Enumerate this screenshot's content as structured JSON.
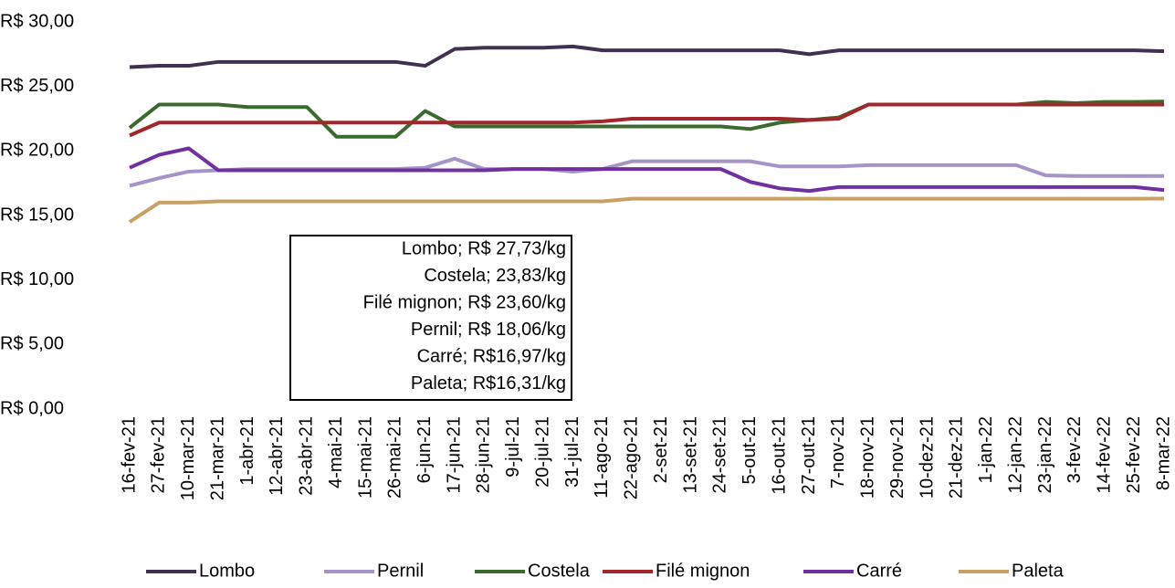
{
  "chart_data": {
    "type": "line",
    "categories": [
      "16-fev-21",
      "27-fev-21",
      "10-mar-21",
      "21-mar-21",
      "1-abr-21",
      "12-abr-21",
      "23-abr-21",
      "4-mai-21",
      "15-mai-21",
      "26-mai-21",
      "6-jun-21",
      "17-jun-21",
      "28-jun-21",
      "9-jul-21",
      "20-jul-21",
      "31-jul-21",
      "11-ago-21",
      "22-ago-21",
      "2-set-21",
      "13-set-21",
      "24-set-21",
      "5-out-21",
      "16-out-21",
      "27-out-21",
      "7-nov-21",
      "18-nov-21",
      "29-nov-21",
      "10-dez-21",
      "21-dez-21",
      "1-jan-22",
      "12-jan-22",
      "23-jan-22",
      "3-fev-22",
      "14-fev-22",
      "25-fev-22",
      "8-mar-22"
    ],
    "series": [
      {
        "name": "Lombo",
        "color": "#3f3151",
        "values": [
          26.5,
          26.6,
          26.6,
          26.9,
          26.9,
          26.9,
          26.9,
          26.9,
          26.9,
          26.9,
          26.6,
          27.9,
          28.0,
          28.0,
          28.0,
          28.1,
          27.8,
          27.8,
          27.8,
          27.8,
          27.8,
          27.8,
          27.8,
          27.5,
          27.8,
          27.8,
          27.8,
          27.8,
          27.8,
          27.8,
          27.8,
          27.8,
          27.8,
          27.8,
          27.8,
          27.73
        ]
      },
      {
        "name": "Pernil",
        "color": "#a694c8",
        "values": [
          17.3,
          17.9,
          18.4,
          18.5,
          18.6,
          18.6,
          18.6,
          18.6,
          18.6,
          18.6,
          18.7,
          19.4,
          18.6,
          18.6,
          18.6,
          18.4,
          18.6,
          19.2,
          19.2,
          19.2,
          19.2,
          19.2,
          18.8,
          18.8,
          18.8,
          18.9,
          18.9,
          18.9,
          18.9,
          18.9,
          18.9,
          18.1,
          18.06,
          18.06,
          18.06,
          18.06
        ]
      },
      {
        "name": "Costela",
        "color": "#3a6b2c",
        "values": [
          21.8,
          23.6,
          23.6,
          23.6,
          23.4,
          23.4,
          23.4,
          21.1,
          21.1,
          21.1,
          23.1,
          21.9,
          21.9,
          21.9,
          21.9,
          21.9,
          21.9,
          21.9,
          21.9,
          21.9,
          21.9,
          21.7,
          22.2,
          22.4,
          22.6,
          23.6,
          23.6,
          23.6,
          23.6,
          23.6,
          23.6,
          23.8,
          23.7,
          23.8,
          23.8,
          23.83
        ]
      },
      {
        "name": "Filé mignon",
        "color": "#a3262a",
        "values": [
          21.2,
          22.2,
          22.2,
          22.2,
          22.2,
          22.2,
          22.2,
          22.2,
          22.2,
          22.2,
          22.2,
          22.2,
          22.2,
          22.2,
          22.2,
          22.2,
          22.3,
          22.5,
          22.5,
          22.5,
          22.5,
          22.5,
          22.5,
          22.4,
          22.5,
          23.6,
          23.6,
          23.6,
          23.6,
          23.6,
          23.6,
          23.6,
          23.6,
          23.6,
          23.6,
          23.6
        ]
      },
      {
        "name": "Carré",
        "color": "#7030a0",
        "values": [
          18.7,
          19.7,
          20.2,
          18.5,
          18.5,
          18.5,
          18.5,
          18.5,
          18.5,
          18.5,
          18.5,
          18.5,
          18.5,
          18.6,
          18.6,
          18.6,
          18.6,
          18.6,
          18.6,
          18.6,
          18.6,
          17.6,
          17.1,
          16.9,
          17.2,
          17.2,
          17.2,
          17.2,
          17.2,
          17.2,
          17.2,
          17.2,
          17.2,
          17.2,
          17.2,
          16.97
        ]
      },
      {
        "name": "Paleta",
        "color": "#c9a064",
        "values": [
          14.5,
          16.0,
          16.0,
          16.1,
          16.1,
          16.1,
          16.1,
          16.1,
          16.1,
          16.1,
          16.1,
          16.1,
          16.1,
          16.1,
          16.1,
          16.1,
          16.1,
          16.3,
          16.3,
          16.3,
          16.3,
          16.3,
          16.3,
          16.3,
          16.3,
          16.3,
          16.3,
          16.3,
          16.3,
          16.3,
          16.3,
          16.3,
          16.3,
          16.3,
          16.3,
          16.31
        ]
      }
    ],
    "ylim": [
      0,
      30
    ],
    "yticks": [
      {
        "value": 0,
        "label": "R$ 0,00"
      },
      {
        "value": 5,
        "label": "R$ 5,00"
      },
      {
        "value": 10,
        "label": "R$ 10,00"
      },
      {
        "value": 15,
        "label": "R$ 15,00"
      },
      {
        "value": 20,
        "label": "R$ 20,00"
      },
      {
        "value": 25,
        "label": "R$ 25,00"
      },
      {
        "value": 30,
        "label": "R$ 30,00"
      }
    ],
    "annotations": [
      "Lombo; R$ 27,73/kg",
      "Costela; 23,83/kg",
      "Filé mignon; R$ 23,60/kg",
      "Pernil; R$ 18,06/kg",
      "Carré; R$16,97/kg",
      "Paleta; R$16,31/kg"
    ],
    "legend": "bottom"
  }
}
